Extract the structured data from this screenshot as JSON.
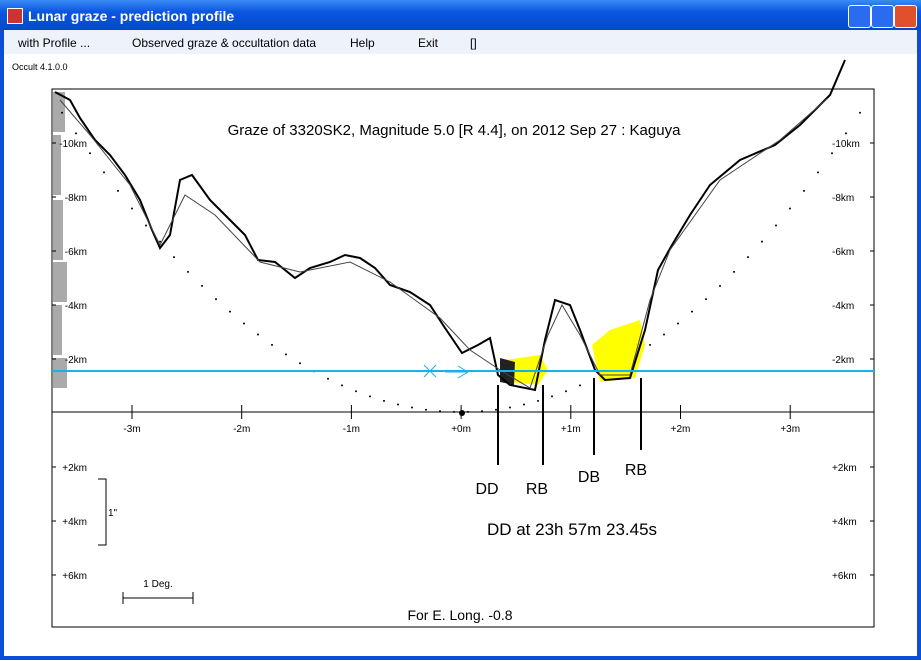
{
  "window": {
    "title": "Lunar graze - prediction profile"
  },
  "menu": [
    "with Profile ...",
    "Observed graze & occultation data",
    "Help",
    "Exit",
    "[]"
  ],
  "version": "Occult 4.1.0.0",
  "plot": {
    "title": "Graze of  3320SK2,  Magnitude 5.0 [R 4.4],  on 2012 Sep 27  :  Kaguya",
    "y_ticks": [
      "-10km",
      "-8km",
      "-6km",
      "-4km",
      "-2km",
      "+2km",
      "+4km",
      "+6km"
    ],
    "x_ticks": [
      "-3m",
      "-2m",
      "-1m",
      "+0m",
      "+1m",
      "+2m",
      "+3m"
    ],
    "events": [
      "DD",
      "RB",
      "DB",
      "RB"
    ],
    "event_time": "DD at 23h 57m 23.45s",
    "scale_arcsec": "1\"",
    "scale_deg": "1 Deg.",
    "longitude": "For E. Long. -0.8"
  }
}
